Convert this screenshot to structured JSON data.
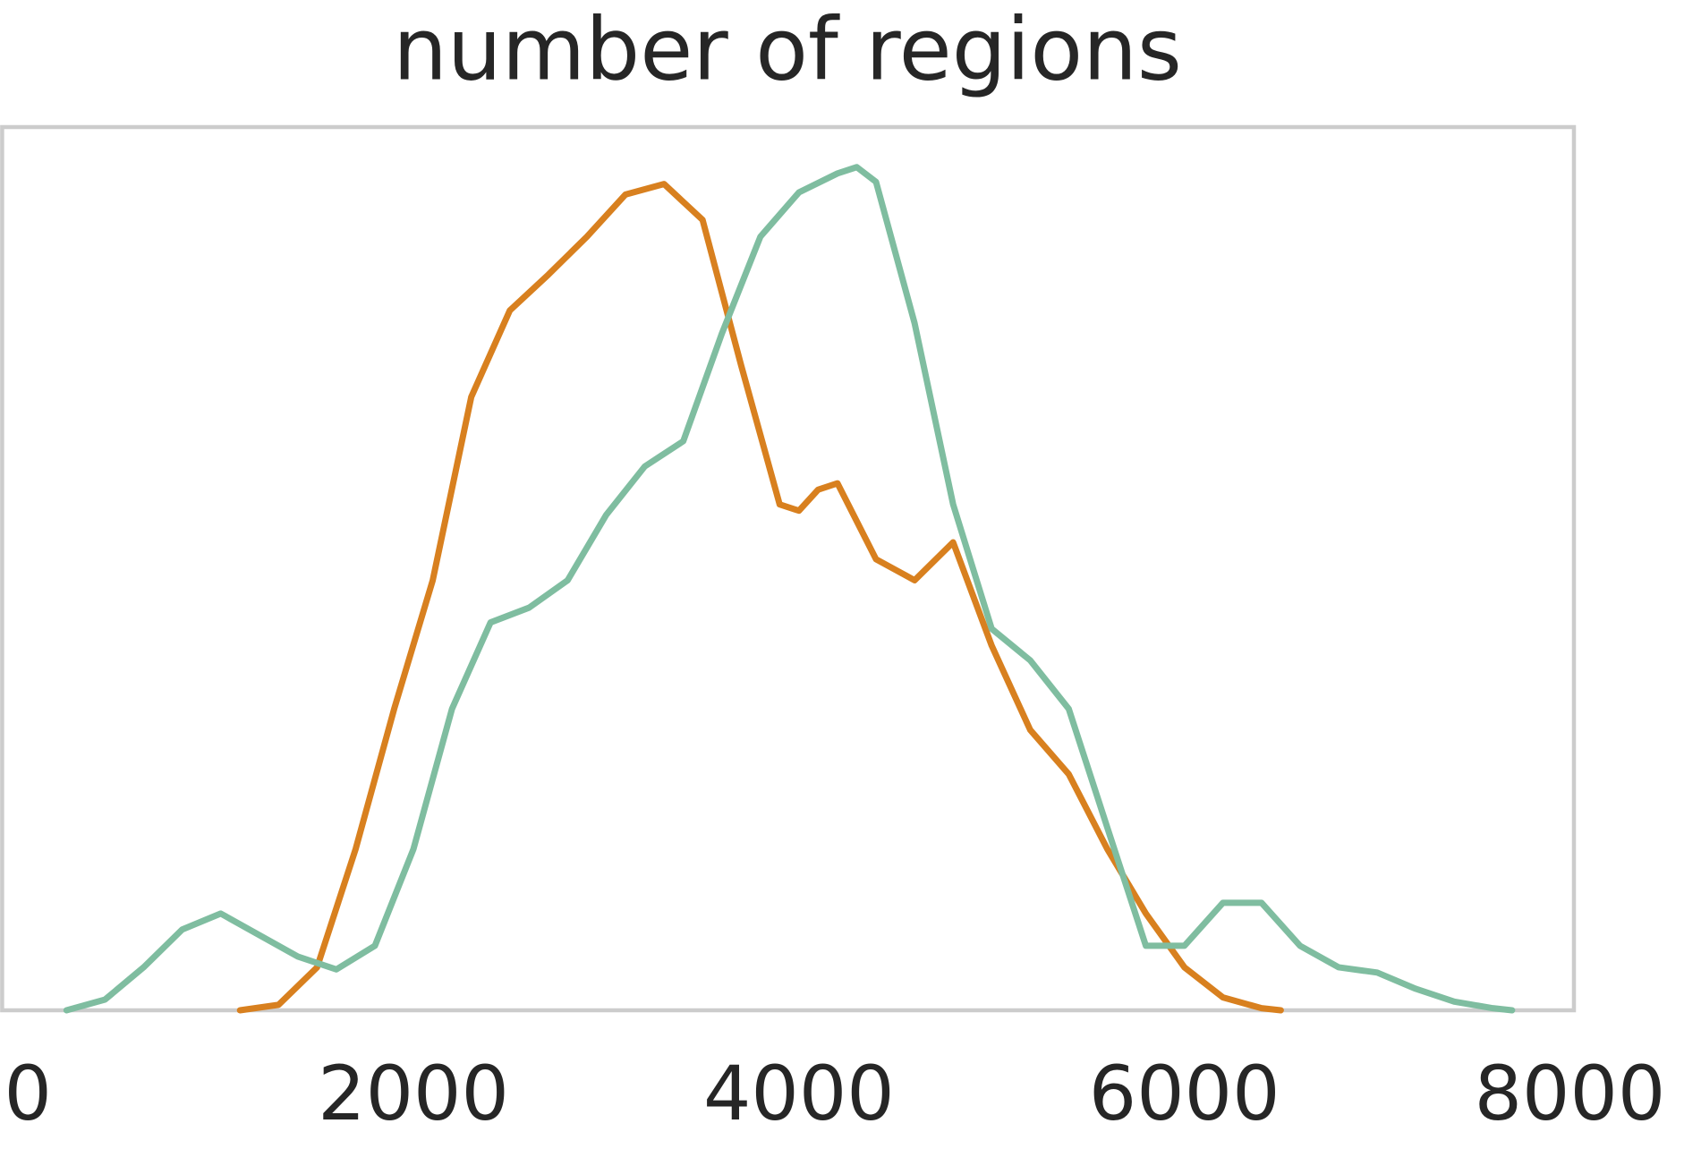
{
  "chart_data": {
    "type": "line",
    "title": "number of regions",
    "xlim": [
      -134,
      8021
    ],
    "xticks": [
      0,
      2000,
      4000,
      6000,
      8000
    ],
    "ylim": [
      0,
      0.000419
    ],
    "series": [
      {
        "color": "#d8801f",
        "x": [
          1100,
          1300,
          1500,
          1700,
          1900,
          2100,
          2300,
          2500,
          2700,
          2900,
          3100,
          3300,
          3500,
          3700,
          3900,
          4000,
          4100,
          4200,
          4400,
          4600,
          4800,
          5000,
          5200,
          5400,
          5600,
          5800,
          6000,
          6200,
          6400,
          6500
        ],
        "values": [
          0,
          2.6e-06,
          2.04e-05,
          7.65e-05,
          0.000143,
          0.000204,
          0.000291,
          0.000332,
          0.000349,
          0.000367,
          0.000387,
          0.000392,
          0.000375,
          0.000306,
          0.00024,
          0.000237,
          0.000247,
          0.00025,
          0.000214,
          0.000204,
          0.000222,
          0.000173,
          0.000133,
          0.000112,
          7.65e-05,
          4.59e-05,
          2.04e-05,
          6.1e-06,
          1e-06,
          0
        ]
      },
      {
        "color": "#7fbda0",
        "x": [
          200,
          400,
          600,
          800,
          1000,
          1200,
          1400,
          1600,
          1800,
          2000,
          2200,
          2400,
          2600,
          2800,
          3000,
          3200,
          3400,
          3600,
          3800,
          4000,
          4200,
          4300,
          4400,
          4600,
          4800,
          5000,
          5200,
          5400,
          5600,
          5800,
          6000,
          6200,
          6400,
          6600,
          6800,
          7000,
          7200,
          7400,
          7600,
          7700
        ],
        "values": [
          0,
          5.1e-06,
          2.04e-05,
          3.83e-05,
          4.59e-05,
          3.57e-05,
          2.55e-05,
          1.94e-05,
          3.06e-05,
          7.65e-05,
          0.000143,
          0.000184,
          0.000191,
          0.000204,
          0.000235,
          0.000258,
          0.00027,
          0.000321,
          0.000367,
          0.000388,
          0.000397,
          0.0004,
          0.000393,
          0.000326,
          0.00024,
          0.000181,
          0.000166,
          0.000143,
          8.67e-05,
          3.06e-05,
          3.06e-05,
          5.1e-05,
          5.1e-05,
          3.06e-05,
          2.04e-05,
          1.79e-05,
          1.02e-05,
          4.1e-06,
          1e-06,
          0
        ]
      }
    ]
  }
}
